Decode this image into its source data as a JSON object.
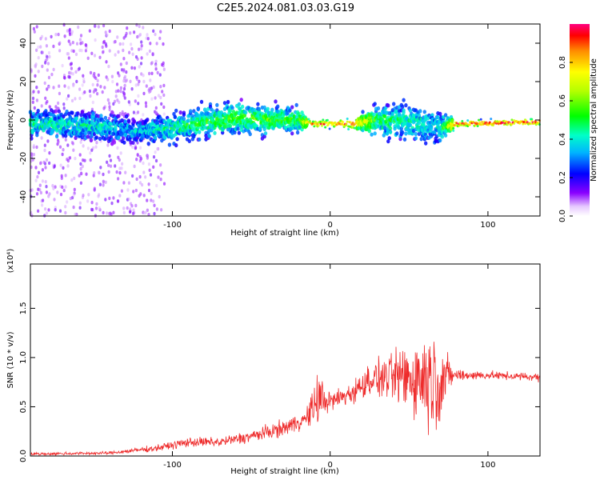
{
  "title": "C2E5.2024.081.03.03.G19",
  "chart_data": [
    {
      "type": "heatmap",
      "xlabel": "Height of straight line (km)",
      "ylabel": "Frequency (Hz)",
      "xlim": [
        -190,
        133
      ],
      "ylim": [
        -50,
        50
      ],
      "xticks": [
        -100,
        0,
        100
      ],
      "yticks": [
        -40,
        -20,
        0,
        20,
        40
      ],
      "colorbar": {
        "label": "Normalized spectral amplitude",
        "range": [
          0.0,
          1.0
        ],
        "ticks": [
          0.0,
          0.2,
          0.4,
          0.6,
          0.8
        ]
      },
      "ridge": [
        {
          "x": -190,
          "freq": -2,
          "width": 8,
          "amp": 0.45
        },
        {
          "x": -150,
          "freq": -3,
          "width": 9,
          "amp": 0.4
        },
        {
          "x": -120,
          "freq": -6,
          "width": 8,
          "amp": 0.35
        },
        {
          "x": -100,
          "freq": -4,
          "width": 9,
          "amp": 0.45
        },
        {
          "x": -80,
          "freq": -1,
          "width": 10,
          "amp": 0.5
        },
        {
          "x": -60,
          "freq": 1,
          "width": 10,
          "amp": 0.55
        },
        {
          "x": -40,
          "freq": 0,
          "width": 9,
          "amp": 0.55
        },
        {
          "x": -20,
          "freq": 0,
          "width": 8,
          "amp": 0.5
        },
        {
          "x": -12,
          "freq": -2,
          "width": 2,
          "amp": 0.9
        },
        {
          "x": 15,
          "freq": -2,
          "width": 3,
          "amp": 0.9
        },
        {
          "x": 30,
          "freq": 0,
          "width": 10,
          "amp": 0.5
        },
        {
          "x": 50,
          "freq": -1,
          "width": 12,
          "amp": 0.45
        },
        {
          "x": 70,
          "freq": -4,
          "width": 10,
          "amp": 0.4
        },
        {
          "x": 80,
          "freq": -2,
          "width": 2,
          "amp": 0.95
        },
        {
          "x": 133,
          "freq": -1,
          "width": 2,
          "amp": 0.95
        }
      ],
      "noise_region_x": [
        -190,
        -120
      ]
    },
    {
      "type": "line",
      "xlabel": "Height of straight line (km)",
      "ylabel": "SNR (10 * v/v)",
      "scale_label": "(x10⁴)",
      "xlim": [
        -190,
        133
      ],
      "ylim": [
        0.0,
        1.95
      ],
      "xticks": [
        -100,
        0,
        100
      ],
      "yticks": [
        0.0,
        0.5,
        1.0,
        1.5
      ],
      "color": "#ee2c2c",
      "envelope": [
        {
          "x": -190,
          "mean": 0.02,
          "spread": 0.02
        },
        {
          "x": -140,
          "mean": 0.03,
          "spread": 0.02
        },
        {
          "x": -110,
          "mean": 0.08,
          "spread": 0.04
        },
        {
          "x": -90,
          "mean": 0.14,
          "spread": 0.06
        },
        {
          "x": -70,
          "mean": 0.14,
          "spread": 0.06
        },
        {
          "x": -50,
          "mean": 0.2,
          "spread": 0.08
        },
        {
          "x": -30,
          "mean": 0.28,
          "spread": 0.1
        },
        {
          "x": -15,
          "mean": 0.38,
          "spread": 0.12
        },
        {
          "x": -7,
          "mean": 0.6,
          "spread": 0.35
        },
        {
          "x": 0,
          "mean": 0.55,
          "spread": 0.12
        },
        {
          "x": 15,
          "mean": 0.65,
          "spread": 0.15
        },
        {
          "x": 25,
          "mean": 0.78,
          "spread": 0.2
        },
        {
          "x": 40,
          "mean": 0.8,
          "spread": 0.3
        },
        {
          "x": 55,
          "mean": 0.8,
          "spread": 0.55
        },
        {
          "x": 68,
          "mean": 0.78,
          "spread": 0.65
        },
        {
          "x": 78,
          "mean": 0.82,
          "spread": 0.08
        },
        {
          "x": 100,
          "mean": 0.82,
          "spread": 0.05
        },
        {
          "x": 133,
          "mean": 0.8,
          "spread": 0.05
        }
      ]
    }
  ]
}
